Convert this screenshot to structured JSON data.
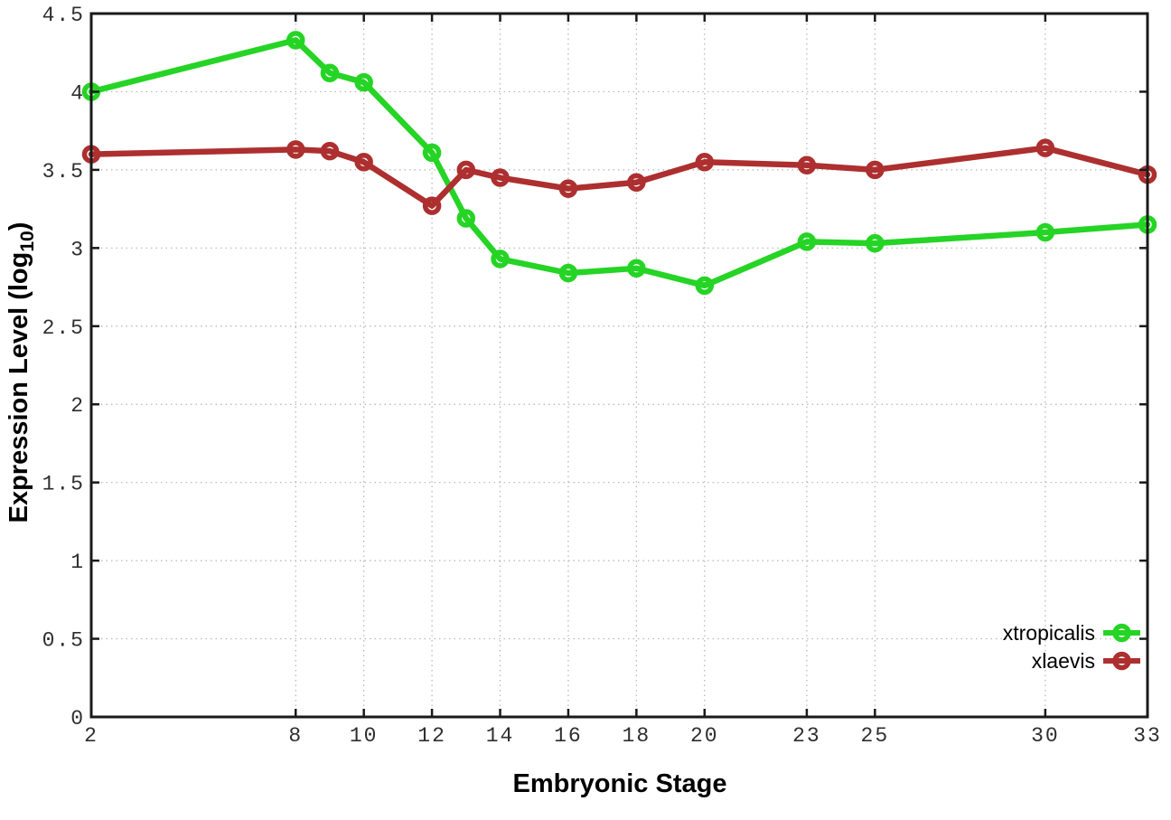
{
  "chart_data": {
    "type": "line",
    "title": "",
    "xlabel": "Embryonic Stage",
    "ylabel": "Expression Level (log10)",
    "ylabel_parts": {
      "main": "Expression Level (log",
      "sub": "10",
      "end": ")"
    },
    "x": [
      2,
      8,
      9,
      10,
      12,
      13,
      14,
      16,
      18,
      20,
      23,
      25,
      30,
      33
    ],
    "series": [
      {
        "name": "xtropicalis",
        "color": "#25d425",
        "marker": "open-circle",
        "values": [
          4.0,
          4.33,
          4.12,
          4.06,
          3.61,
          3.19,
          2.93,
          2.84,
          2.87,
          2.76,
          3.04,
          3.03,
          3.1,
          3.15
        ]
      },
      {
        "name": "xlaevis",
        "color": "#ad2f2f",
        "marker": "open-circle",
        "values": [
          3.6,
          3.63,
          3.62,
          3.55,
          3.27,
          3.5,
          3.45,
          3.38,
          3.42,
          3.55,
          3.53,
          3.5,
          3.64,
          3.47
        ]
      }
    ],
    "xticks": [
      2,
      8,
      10,
      12,
      14,
      16,
      18,
      20,
      23,
      25,
      30,
      33
    ],
    "yticks": [
      0,
      0.5,
      1,
      1.5,
      2,
      2.5,
      3,
      3.5,
      4,
      4.5
    ],
    "xlim": [
      2,
      33
    ],
    "ylim": [
      0,
      4.5
    ],
    "grid": true,
    "grid_style": "dotted",
    "legend": {
      "position": "bottom-right",
      "box": false
    },
    "colors": {
      "axis": "#1a1a1a",
      "grid": "#b4b4b4",
      "background": "#ffffff"
    }
  }
}
